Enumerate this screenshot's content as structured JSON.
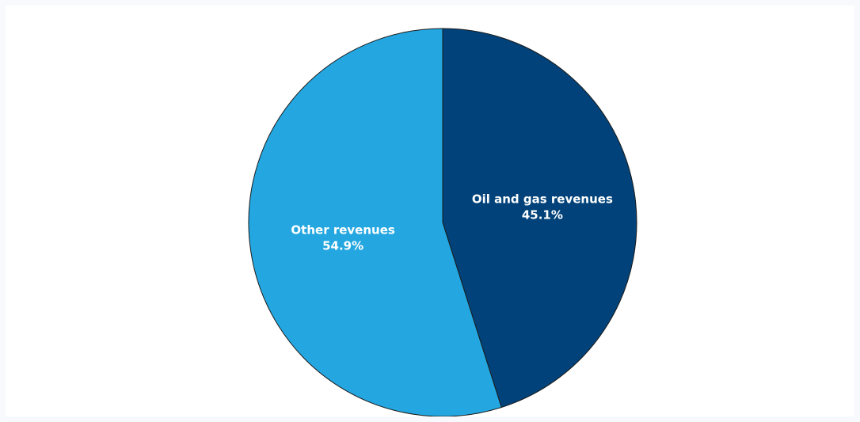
{
  "chart_data": {
    "type": "pie",
    "title": "",
    "slices": [
      {
        "label": "Oil and gas revenues",
        "value_label": "45.1%",
        "value": 45.1,
        "color": "#004279"
      },
      {
        "label": "Other revenues",
        "value_label": "54.9%",
        "value": 54.9,
        "color": "#24a7e0"
      }
    ],
    "start_angle": "12 o'clock",
    "direction": "clockwise",
    "background_color": "#ffffff",
    "outline_color": "#1c1c1c"
  }
}
